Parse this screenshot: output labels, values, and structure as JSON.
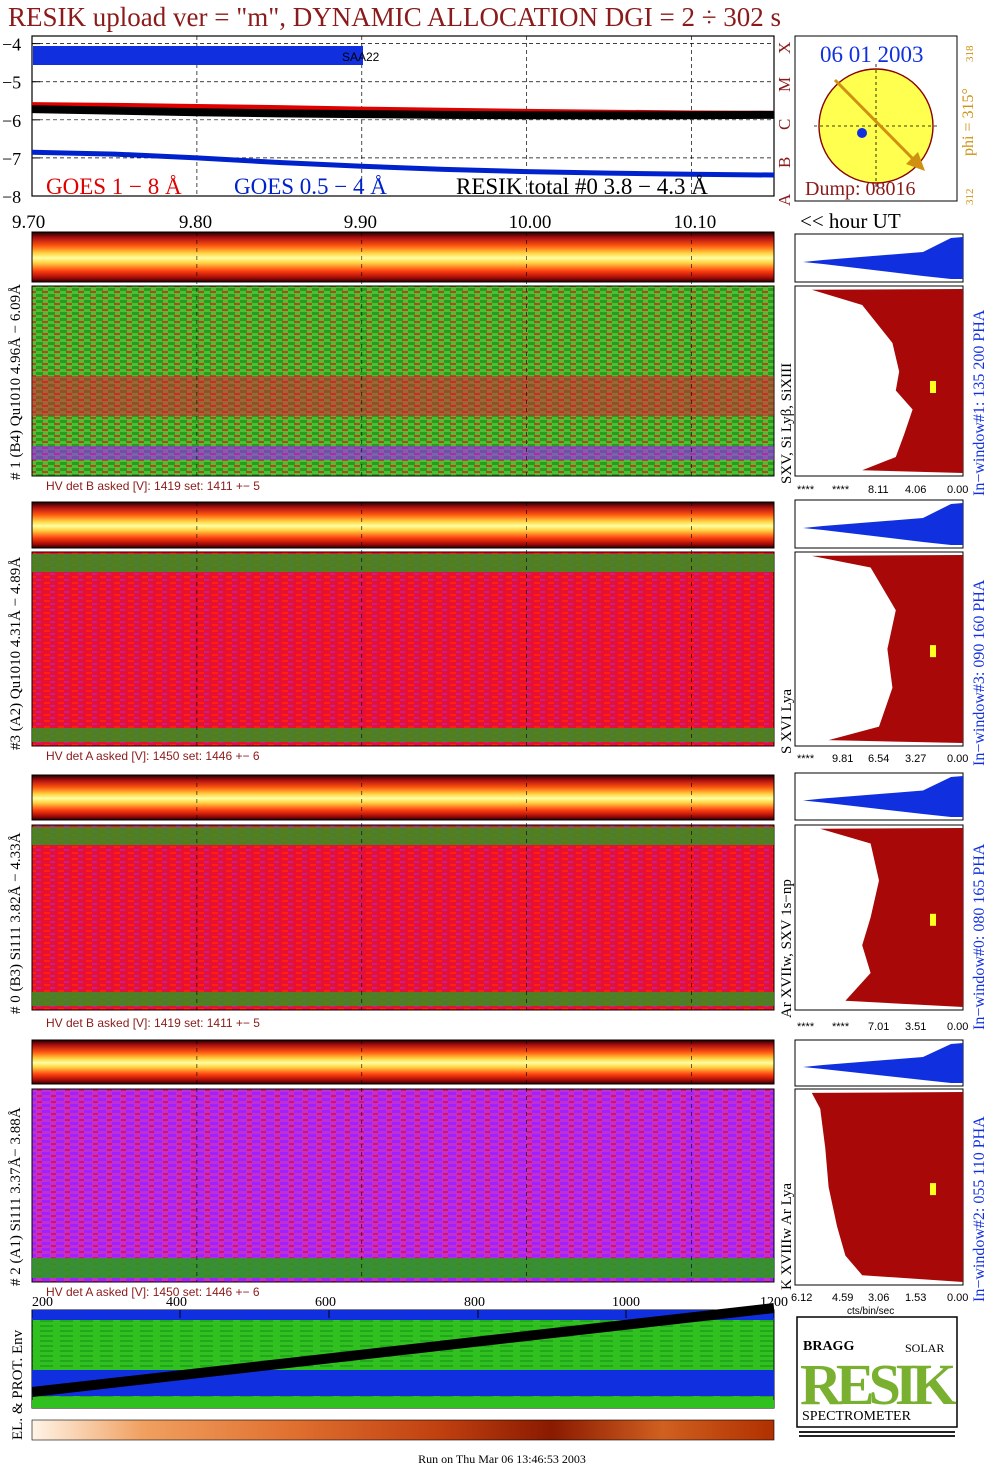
{
  "header": {
    "title": "RESIK upload ver = \"m\", DYNAMIC ALLOCATION  DGI =   2 ÷ 302 s"
  },
  "goes_panel": {
    "y_ticks": [
      "−4",
      "−5",
      "−6",
      "−7",
      "−8"
    ],
    "class_letters": [
      "X",
      "M",
      "C",
      "B",
      "A"
    ],
    "legend": [
      {
        "label": "GOES 1 − 8 Å",
        "color": "#e00000"
      },
      {
        "label": "GOES 0.5 − 4 Å",
        "color": "#0022cc"
      },
      {
        "label": "RESIK total #0  3.8 − 4.3 Å",
        "color": "#000000"
      }
    ],
    "saa_label": "SAA22",
    "x_ticks": [
      "9.70",
      "9.80",
      "9.90",
      "10.00",
      "10.10"
    ],
    "hour_label": "<< hour UT"
  },
  "sun_box": {
    "date": "06 01 2003",
    "dump": "Dump: 08016",
    "phi": "phi = 315°",
    "phi_top": "318",
    "phi_bottom": "312"
  },
  "channels": [
    {
      "id": "ch1",
      "left_label": "# 1 (B4) Qu1010 4.96Å − 6.09Å",
      "line_label": "SXV, Si Lyβ, SiXIII",
      "window_label": "In−window#1:  135 200 PHA",
      "hv": "HV det B asked [V]:  1419 set:  1411 +−    5",
      "scale": [
        "****",
        "****",
        "8.11",
        "4.06",
        "0.00"
      ]
    },
    {
      "id": "ch3",
      "left_label": "#3 (A2) Qu1010  4.31Å − 4.89Å",
      "line_label": "S XVI Lya",
      "window_label": "In−window#3:  090 160 PHA",
      "hv": "HV det A asked [V]:  1450 set:  1446 +−    6",
      "scale": [
        "****",
        "9.81",
        "6.54",
        "3.27",
        "0.00"
      ]
    },
    {
      "id": "ch0",
      "left_label": "# 0 (B3) Si111  3.82Å − 4.33Å",
      "line_label": "Ar XVIIw,  SXV 1s−np",
      "window_label": "In−window#0:  080 165 PHA",
      "hv": "HV det B asked [V]:  1419 set:  1411 +−    5",
      "scale": [
        "****",
        "****",
        "7.01",
        "3.51",
        "0.00"
      ]
    },
    {
      "id": "ch2",
      "left_label": "# 2 (A1) Si111  3.37Å−  3.88Å",
      "line_label": "K XVIIIw  Ar Lya",
      "window_label": "In−window#2:  055 110 PHA",
      "hv": "HV det A asked [V]:  1450 set:  1446 +−    6",
      "scale": [
        "6.12",
        "4.59",
        "3.06",
        "1.53",
        "0.00"
      ]
    }
  ],
  "pha_axis": {
    "label": "cts/bin/sec"
  },
  "env_panel": {
    "label": "EL. & PROT. Env",
    "x_ticks": [
      "200",
      "400",
      "600",
      "800",
      "1000",
      "1200"
    ]
  },
  "logo": {
    "letters": "RESIK",
    "bragg": "BRAGG",
    "solar": "SOLAR",
    "spectrometer": "SPECTROMETER"
  },
  "footer": "Run on Thu Mar 06 13:46:53 2003",
  "chart_data": {
    "type": "line",
    "title": "RESIK upload ver = \"m\", DYNAMIC ALLOCATION  DGI =   2 ÷ 302 s",
    "xlabel": "hour UT",
    "ylabel": "",
    "xlim": [
      9.7,
      10.15
    ],
    "ylim": [
      -8,
      -3.8
    ],
    "x": [
      9.7,
      9.75,
      9.8,
      9.85,
      9.9,
      9.95,
      10.0,
      10.05,
      10.1,
      10.15
    ],
    "series": [
      {
        "name": "GOES 1 − 8 Å",
        "values": [
          -5.6,
          -5.62,
          -5.65,
          -5.68,
          -5.72,
          -5.75,
          -5.78,
          -5.8,
          -5.82,
          -5.83
        ]
      },
      {
        "name": "GOES 0.5 − 4 Å",
        "values": [
          -6.85,
          -6.9,
          -7.0,
          -7.12,
          -7.22,
          -7.3,
          -7.36,
          -7.4,
          -7.43,
          -7.45
        ]
      },
      {
        "name": "RESIK total #0  3.8 − 4.3 Å",
        "values": [
          -5.72,
          -5.76,
          -5.8,
          -5.83,
          -5.85,
          -5.87,
          -5.88,
          -5.88,
          -5.88,
          -5.87
        ]
      }
    ]
  }
}
